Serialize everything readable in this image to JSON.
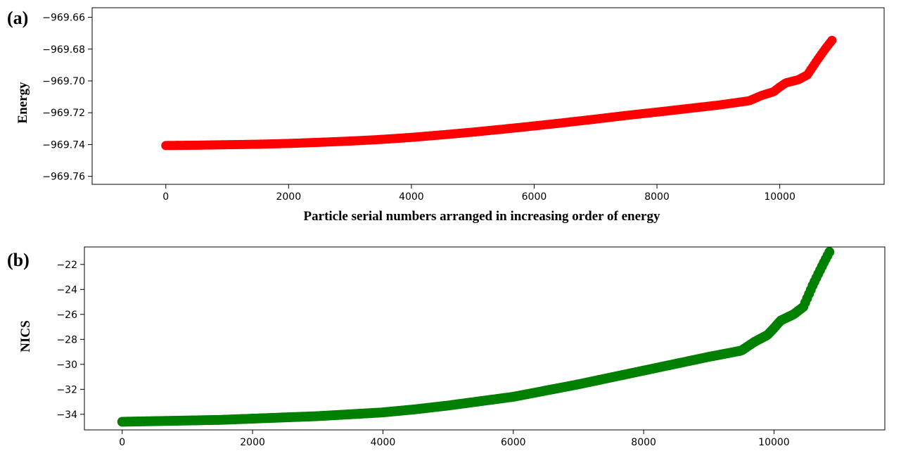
{
  "chart_data": [
    {
      "panel": "(a)",
      "type": "scatter",
      "title": "",
      "xlabel": "Particle serial numbers arranged in increasing order of energy",
      "ylabel": "Energy",
      "xlim": [
        -1200,
        11700
      ],
      "ylim": [
        -969.765,
        -969.654
      ],
      "xticks": [
        0,
        2000,
        4000,
        6000,
        8000,
        10000
      ],
      "xtick_labels": [
        "0",
        "2000",
        "4000",
        "6000",
        "8000",
        "10000"
      ],
      "yticks": [
        -969.76,
        -969.74,
        -969.72,
        -969.7,
        -969.68,
        -969.66
      ],
      "ytick_labels": [
        "−969.76",
        "−969.74",
        "−969.72",
        "−969.70",
        "−969.68",
        "−969.66"
      ],
      "grid": false,
      "color": "#ff0000",
      "series": [
        {
          "x": [
            0,
            500,
            1000,
            1500,
            2000,
            2500,
            3000,
            3500,
            4000,
            4500,
            5000,
            5500,
            6000,
            6500,
            7000,
            7500,
            8000,
            8500,
            9000,
            9500,
            9700,
            9900,
            10000,
            10100,
            10300,
            10450,
            10600,
            10750,
            10850
          ],
          "y": [
            -969.7406,
            -969.7404,
            -969.7401,
            -969.7398,
            -969.7393,
            -969.7386,
            -969.7378,
            -969.7368,
            -969.7355,
            -969.7339,
            -969.7322,
            -969.7303,
            -969.7283,
            -969.7262,
            -969.724,
            -969.7217,
            -969.7196,
            -969.7174,
            -969.7152,
            -969.7125,
            -969.7092,
            -969.7068,
            -969.7038,
            -969.7012,
            -969.6993,
            -969.6962,
            -969.6875,
            -969.6794,
            -969.6745
          ]
        }
      ]
    },
    {
      "panel": "(b)",
      "type": "scatter",
      "title": "",
      "xlabel": "",
      "ylabel": "NICS",
      "xlim": [
        -580,
        11700
      ],
      "ylim": [
        -35.25,
        -20.6
      ],
      "xticks": [
        0,
        2000,
        4000,
        6000,
        8000,
        10000
      ],
      "xtick_labels": [
        "0",
        "2000",
        "4000",
        "6000",
        "8000",
        "10000"
      ],
      "yticks": [
        -34,
        -32,
        -30,
        -28,
        -26,
        -24,
        -22
      ],
      "ytick_labels": [
        "−34",
        "−32",
        "−30",
        "−28",
        "−26",
        "−24",
        "−22"
      ],
      "grid": false,
      "color": "#008000",
      "series": [
        {
          "x": [
            0,
            500,
            1000,
            1500,
            2000,
            2500,
            3000,
            3500,
            4000,
            4500,
            5000,
            5500,
            6000,
            6500,
            7000,
            7500,
            8000,
            8500,
            9000,
            9500,
            9700,
            9900,
            10000,
            10100,
            10300,
            10450,
            10600,
            10750,
            10850
          ],
          "y": [
            -34.6,
            -34.55,
            -34.5,
            -34.45,
            -34.35,
            -34.25,
            -34.15,
            -34.0,
            -33.85,
            -33.6,
            -33.3,
            -32.95,
            -32.6,
            -32.1,
            -31.6,
            -31.05,
            -30.5,
            -29.95,
            -29.4,
            -28.9,
            -28.2,
            -27.65,
            -27.1,
            -26.5,
            -26.0,
            -25.4,
            -23.6,
            -22.0,
            -21.0
          ]
        }
      ]
    }
  ]
}
